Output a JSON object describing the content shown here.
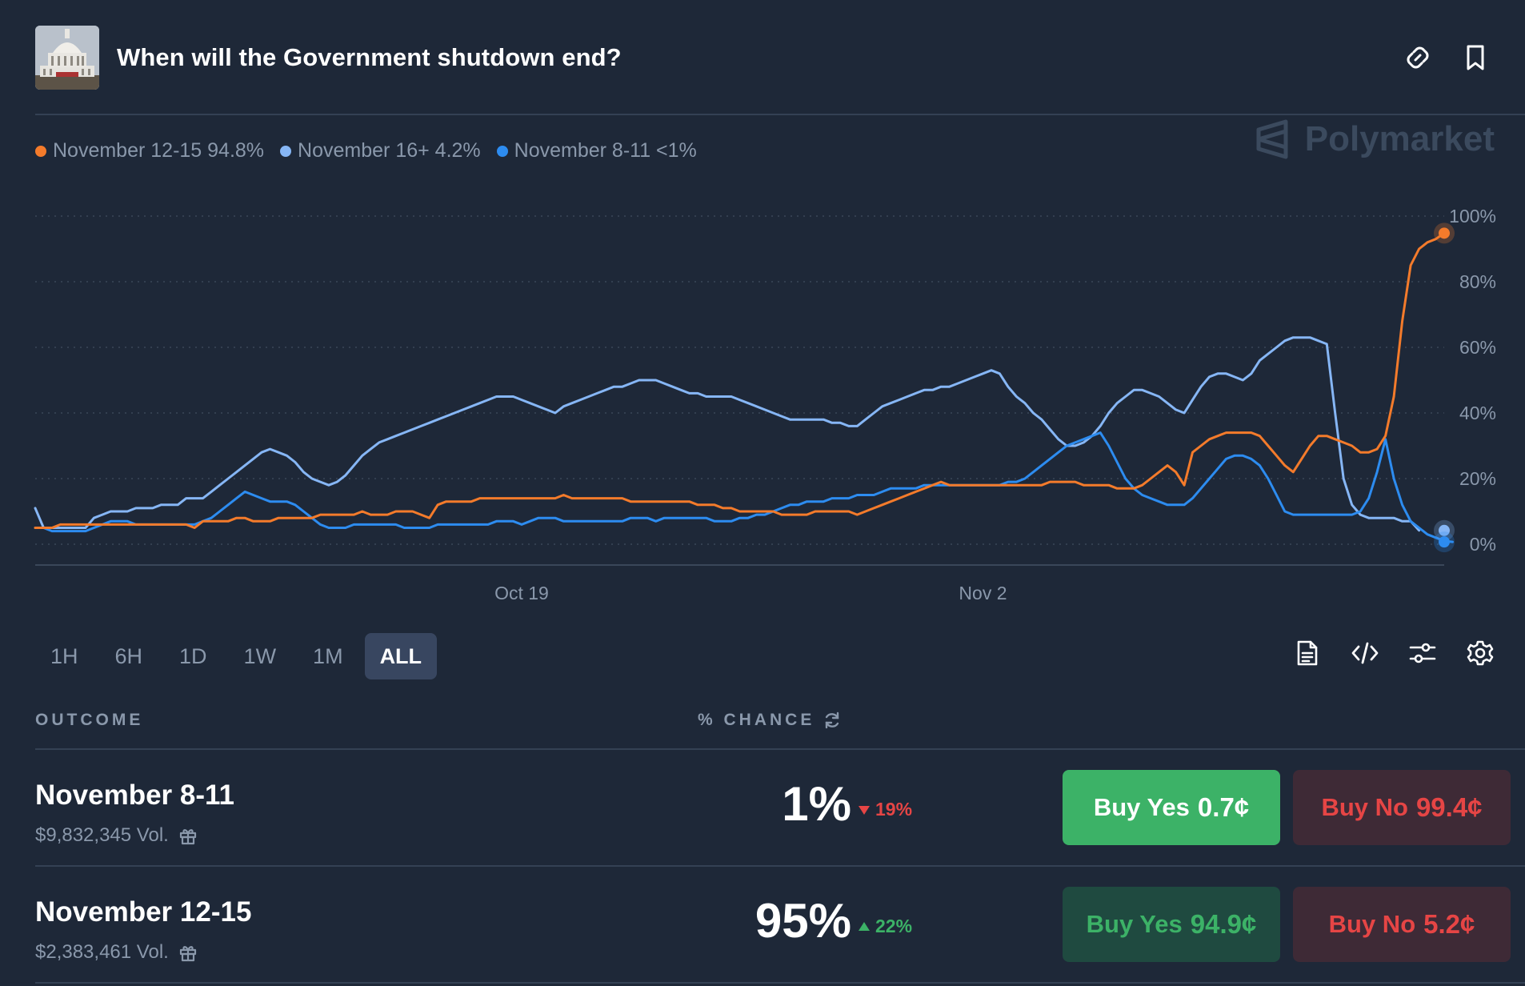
{
  "header": {
    "title": "When will the Government shutdown end?"
  },
  "legend": [
    {
      "label": "November 12-15 94.8%",
      "color": "#f47b2b"
    },
    {
      "label": "November 16+ 4.2%",
      "color": "#86b6f5"
    },
    {
      "label": "November 8-11 <1%",
      "color": "#2d8cf0"
    }
  ],
  "watermark": "Polymarket",
  "chart_data": {
    "type": "line",
    "x_tick_labels": [
      "Oct 19",
      "Nov 2"
    ],
    "y_tick_labels": [
      "100%",
      "80%",
      "60%",
      "40%",
      "20%",
      "0%"
    ],
    "ylim": [
      0,
      100
    ],
    "grid": true,
    "legend_position": "top-left",
    "series": [
      {
        "name": "November 12-15",
        "color": "#f47b2b",
        "values": [
          5,
          5,
          5,
          6,
          6,
          6,
          6,
          6,
          6,
          6,
          6,
          6,
          6,
          6,
          6,
          6,
          6,
          6,
          6,
          5,
          7,
          7,
          7,
          7,
          8,
          8,
          7,
          7,
          7,
          8,
          8,
          8,
          8,
          8,
          9,
          9,
          9,
          9,
          9,
          10,
          9,
          9,
          9,
          10,
          10,
          10,
          9,
          8,
          12,
          13,
          13,
          13,
          13,
          14,
          14,
          14,
          14,
          14,
          14,
          14,
          14,
          14,
          14,
          15,
          14,
          14,
          14,
          14,
          14,
          14,
          14,
          13,
          13,
          13,
          13,
          13,
          13,
          13,
          13,
          12,
          12,
          12,
          11,
          11,
          10,
          10,
          10,
          10,
          10,
          9,
          9,
          9,
          9,
          10,
          10,
          10,
          10,
          10,
          9,
          10,
          11,
          12,
          13,
          14,
          15,
          16,
          17,
          18,
          19,
          18,
          18,
          18,
          18,
          18,
          18,
          18,
          18,
          18,
          18,
          18,
          18,
          19,
          19,
          19,
          19,
          18,
          18,
          18,
          18,
          17,
          17,
          17,
          18,
          20,
          22,
          24,
          22,
          18,
          28,
          30,
          32,
          33,
          34,
          34,
          34,
          34,
          33,
          30,
          27,
          24,
          22,
          26,
          30,
          33,
          33,
          32,
          31,
          30,
          28,
          28,
          29,
          33,
          45,
          68,
          85,
          90,
          92,
          93,
          94.8
        ]
      },
      {
        "name": "November 16+",
        "color": "#86b6f5",
        "values": [
          11,
          5,
          5,
          5,
          5,
          5,
          5,
          8,
          9,
          10,
          10,
          10,
          11,
          11,
          11,
          12,
          12,
          12,
          14,
          14,
          14,
          16,
          18,
          20,
          22,
          24,
          26,
          28,
          29,
          28,
          27,
          25,
          22,
          20,
          19,
          18,
          19,
          21,
          24,
          27,
          29,
          31,
          32,
          33,
          34,
          35,
          36,
          37,
          38,
          39,
          40,
          41,
          42,
          43,
          44,
          45,
          45,
          45,
          44,
          43,
          42,
          41,
          40,
          42,
          43,
          44,
          45,
          46,
          47,
          48,
          48,
          49,
          50,
          50,
          50,
          49,
          48,
          47,
          46,
          46,
          45,
          45,
          45,
          45,
          44,
          43,
          42,
          41,
          40,
          39,
          38,
          38,
          38,
          38,
          38,
          37,
          37,
          36,
          36,
          38,
          40,
          42,
          43,
          44,
          45,
          46,
          47,
          47,
          48,
          48,
          49,
          50,
          51,
          52,
          53,
          52,
          48,
          45,
          43,
          40,
          38,
          35,
          32,
          30,
          30,
          31,
          33,
          36,
          40,
          43,
          45,
          47,
          47,
          46,
          45,
          43,
          41,
          40,
          44,
          48,
          51,
          52,
          52,
          51,
          50,
          52,
          56,
          58,
          60,
          62,
          63,
          63,
          63,
          62,
          61,
          40,
          20,
          12,
          9,
          8,
          8,
          8,
          8,
          7,
          7,
          4.2
        ]
      },
      {
        "name": "November 8-11",
        "color": "#2d8cf0",
        "values": [
          5,
          5,
          4,
          4,
          4,
          4,
          4,
          5,
          6,
          7,
          7,
          7,
          6,
          6,
          6,
          6,
          6,
          6,
          6,
          6,
          7,
          8,
          10,
          12,
          14,
          16,
          15,
          14,
          13,
          13,
          13,
          12,
          10,
          8,
          6,
          5,
          5,
          5,
          6,
          6,
          6,
          6,
          6,
          6,
          5,
          5,
          5,
          5,
          6,
          6,
          6,
          6,
          6,
          6,
          6,
          7,
          7,
          7,
          6,
          7,
          8,
          8,
          8,
          7,
          7,
          7,
          7,
          7,
          7,
          7,
          7,
          8,
          8,
          8,
          7,
          8,
          8,
          8,
          8,
          8,
          8,
          7,
          7,
          7,
          8,
          8,
          9,
          9,
          10,
          11,
          12,
          12,
          13,
          13,
          13,
          14,
          14,
          14,
          15,
          15,
          15,
          16,
          17,
          17,
          17,
          17,
          18,
          18,
          18,
          18,
          18,
          18,
          18,
          18,
          18,
          18,
          19,
          19,
          20,
          22,
          24,
          26,
          28,
          30,
          31,
          32,
          33,
          34,
          30,
          25,
          20,
          17,
          15,
          14,
          13,
          12,
          12,
          12,
          14,
          17,
          20,
          23,
          26,
          27,
          27,
          26,
          24,
          20,
          15,
          10,
          9,
          9,
          9,
          9,
          9,
          9,
          9,
          9,
          10,
          14,
          22,
          32,
          20,
          12,
          7,
          5,
          3,
          2,
          1,
          0.7
        ]
      }
    ]
  },
  "time_ranges": [
    "1H",
    "6H",
    "1D",
    "1W",
    "1M",
    "ALL"
  ],
  "active_range": "ALL",
  "table": {
    "col_outcome": "OUTCOME",
    "col_chance": "% CHANCE",
    "rows": [
      {
        "name": "November 8-11",
        "volume": "$9,832,345 Vol.",
        "chance": "1%",
        "change": "19%",
        "change_direction": "down",
        "buy_yes_label": "Buy Yes",
        "buy_yes_price": "0.7¢",
        "buy_no_label": "Buy No",
        "buy_no_price": "99.4¢"
      },
      {
        "name": "November 12-15",
        "volume": "$2,383,461 Vol.",
        "chance": "95%",
        "change": "22%",
        "change_direction": "up",
        "buy_yes_label": "Buy Yes",
        "buy_yes_price": "94.9¢",
        "buy_no_label": "Buy No",
        "buy_no_price": "5.2¢"
      }
    ]
  },
  "colors": {
    "background": "#1e2838",
    "up": "#3cb267",
    "down": "#e64545",
    "muted_text": "#8a98ab"
  }
}
